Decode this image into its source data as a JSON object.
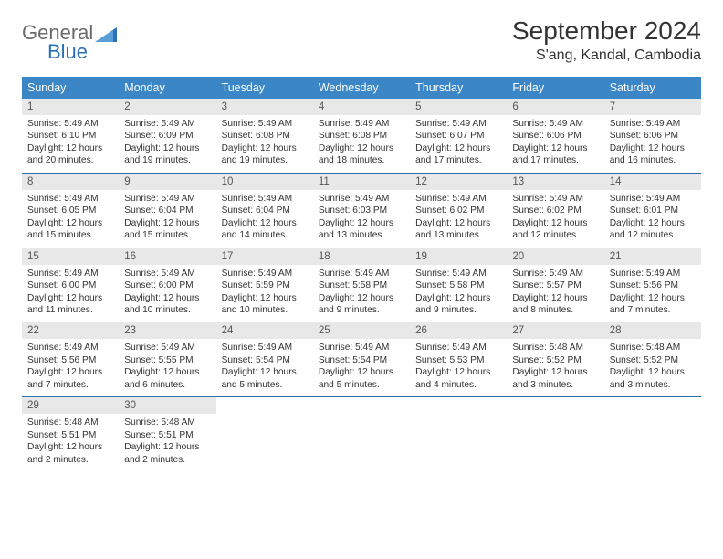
{
  "logo": {
    "word1": "General",
    "word2": "Blue"
  },
  "title": "September 2024",
  "location": "S'ang, Kandal, Cambodia",
  "colors": {
    "header_bg": "#3b86c6",
    "week_border": "#2a6fae",
    "daynum_bg": "#e8e8e8",
    "text": "#333333",
    "logo_gray": "#6b6b6b",
    "logo_blue": "#2a71b8"
  },
  "day_names": [
    "Sunday",
    "Monday",
    "Tuesday",
    "Wednesday",
    "Thursday",
    "Friday",
    "Saturday"
  ],
  "days": [
    {
      "n": "1",
      "sr": "5:49 AM",
      "ss": "6:10 PM",
      "dl": "12 hours and 20 minutes."
    },
    {
      "n": "2",
      "sr": "5:49 AM",
      "ss": "6:09 PM",
      "dl": "12 hours and 19 minutes."
    },
    {
      "n": "3",
      "sr": "5:49 AM",
      "ss": "6:08 PM",
      "dl": "12 hours and 19 minutes."
    },
    {
      "n": "4",
      "sr": "5:49 AM",
      "ss": "6:08 PM",
      "dl": "12 hours and 18 minutes."
    },
    {
      "n": "5",
      "sr": "5:49 AM",
      "ss": "6:07 PM",
      "dl": "12 hours and 17 minutes."
    },
    {
      "n": "6",
      "sr": "5:49 AM",
      "ss": "6:06 PM",
      "dl": "12 hours and 17 minutes."
    },
    {
      "n": "7",
      "sr": "5:49 AM",
      "ss": "6:06 PM",
      "dl": "12 hours and 16 minutes."
    },
    {
      "n": "8",
      "sr": "5:49 AM",
      "ss": "6:05 PM",
      "dl": "12 hours and 15 minutes."
    },
    {
      "n": "9",
      "sr": "5:49 AM",
      "ss": "6:04 PM",
      "dl": "12 hours and 15 minutes."
    },
    {
      "n": "10",
      "sr": "5:49 AM",
      "ss": "6:04 PM",
      "dl": "12 hours and 14 minutes."
    },
    {
      "n": "11",
      "sr": "5:49 AM",
      "ss": "6:03 PM",
      "dl": "12 hours and 13 minutes."
    },
    {
      "n": "12",
      "sr": "5:49 AM",
      "ss": "6:02 PM",
      "dl": "12 hours and 13 minutes."
    },
    {
      "n": "13",
      "sr": "5:49 AM",
      "ss": "6:02 PM",
      "dl": "12 hours and 12 minutes."
    },
    {
      "n": "14",
      "sr": "5:49 AM",
      "ss": "6:01 PM",
      "dl": "12 hours and 12 minutes."
    },
    {
      "n": "15",
      "sr": "5:49 AM",
      "ss": "6:00 PM",
      "dl": "12 hours and 11 minutes."
    },
    {
      "n": "16",
      "sr": "5:49 AM",
      "ss": "6:00 PM",
      "dl": "12 hours and 10 minutes."
    },
    {
      "n": "17",
      "sr": "5:49 AM",
      "ss": "5:59 PM",
      "dl": "12 hours and 10 minutes."
    },
    {
      "n": "18",
      "sr": "5:49 AM",
      "ss": "5:58 PM",
      "dl": "12 hours and 9 minutes."
    },
    {
      "n": "19",
      "sr": "5:49 AM",
      "ss": "5:58 PM",
      "dl": "12 hours and 9 minutes."
    },
    {
      "n": "20",
      "sr": "5:49 AM",
      "ss": "5:57 PM",
      "dl": "12 hours and 8 minutes."
    },
    {
      "n": "21",
      "sr": "5:49 AM",
      "ss": "5:56 PM",
      "dl": "12 hours and 7 minutes."
    },
    {
      "n": "22",
      "sr": "5:49 AM",
      "ss": "5:56 PM",
      "dl": "12 hours and 7 minutes."
    },
    {
      "n": "23",
      "sr": "5:49 AM",
      "ss": "5:55 PM",
      "dl": "12 hours and 6 minutes."
    },
    {
      "n": "24",
      "sr": "5:49 AM",
      "ss": "5:54 PM",
      "dl": "12 hours and 5 minutes."
    },
    {
      "n": "25",
      "sr": "5:49 AM",
      "ss": "5:54 PM",
      "dl": "12 hours and 5 minutes."
    },
    {
      "n": "26",
      "sr": "5:49 AM",
      "ss": "5:53 PM",
      "dl": "12 hours and 4 minutes."
    },
    {
      "n": "27",
      "sr": "5:48 AM",
      "ss": "5:52 PM",
      "dl": "12 hours and 3 minutes."
    },
    {
      "n": "28",
      "sr": "5:48 AM",
      "ss": "5:52 PM",
      "dl": "12 hours and 3 minutes."
    },
    {
      "n": "29",
      "sr": "5:48 AM",
      "ss": "5:51 PM",
      "dl": "12 hours and 2 minutes."
    },
    {
      "n": "30",
      "sr": "5:48 AM",
      "ss": "5:51 PM",
      "dl": "12 hours and 2 minutes."
    }
  ],
  "labels": {
    "sunrise": "Sunrise:",
    "sunset": "Sunset:",
    "daylight": "Daylight:"
  }
}
